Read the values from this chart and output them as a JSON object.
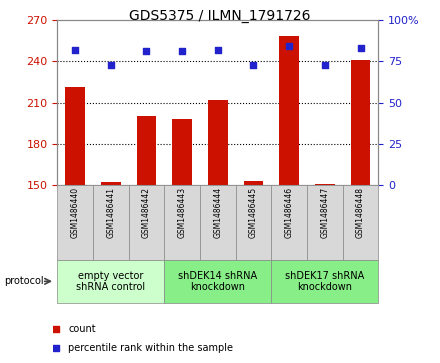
{
  "title": "GDS5375 / ILMN_1791726",
  "samples": [
    "GSM1486440",
    "GSM1486441",
    "GSM1486442",
    "GSM1486443",
    "GSM1486444",
    "GSM1486445",
    "GSM1486446",
    "GSM1486447",
    "GSM1486448"
  ],
  "count_values": [
    221,
    152,
    200,
    198,
    212,
    153,
    258,
    151,
    241
  ],
  "percentile_values": [
    82,
    73,
    81,
    81,
    82,
    73,
    84,
    73,
    83
  ],
  "count_color": "#cc1100",
  "percentile_color": "#2222cc",
  "ylim_left": [
    150,
    270
  ],
  "ylim_right": [
    0,
    100
  ],
  "yticks_left": [
    150,
    180,
    210,
    240,
    270
  ],
  "yticks_right": [
    0,
    25,
    50,
    75,
    100
  ],
  "ytick_labels_right": [
    "0",
    "25",
    "50",
    "75",
    "100%"
  ],
  "groups": [
    {
      "label": "empty vector\nshRNA control",
      "start": 0,
      "end": 3,
      "color": "#ccffcc"
    },
    {
      "label": "shDEK14 shRNA\nknockdown",
      "start": 3,
      "end": 6,
      "color": "#88ee88"
    },
    {
      "label": "shDEK17 shRNA\nknockdown",
      "start": 6,
      "end": 9,
      "color": "#88ee88"
    }
  ],
  "protocol_label": "protocol",
  "legend_count_label": "count",
  "legend_pct_label": "percentile rank within the sample",
  "background_color": "#ffffff",
  "bar_width": 0.55,
  "sample_box_color": "#d8d8d8",
  "spine_color": "#888888",
  "grid_color": "black",
  "title_fontsize": 10,
  "tick_fontsize": 8,
  "sample_fontsize": 5.5,
  "group_fontsize": 7,
  "legend_fontsize": 7,
  "protocol_fontsize": 7
}
